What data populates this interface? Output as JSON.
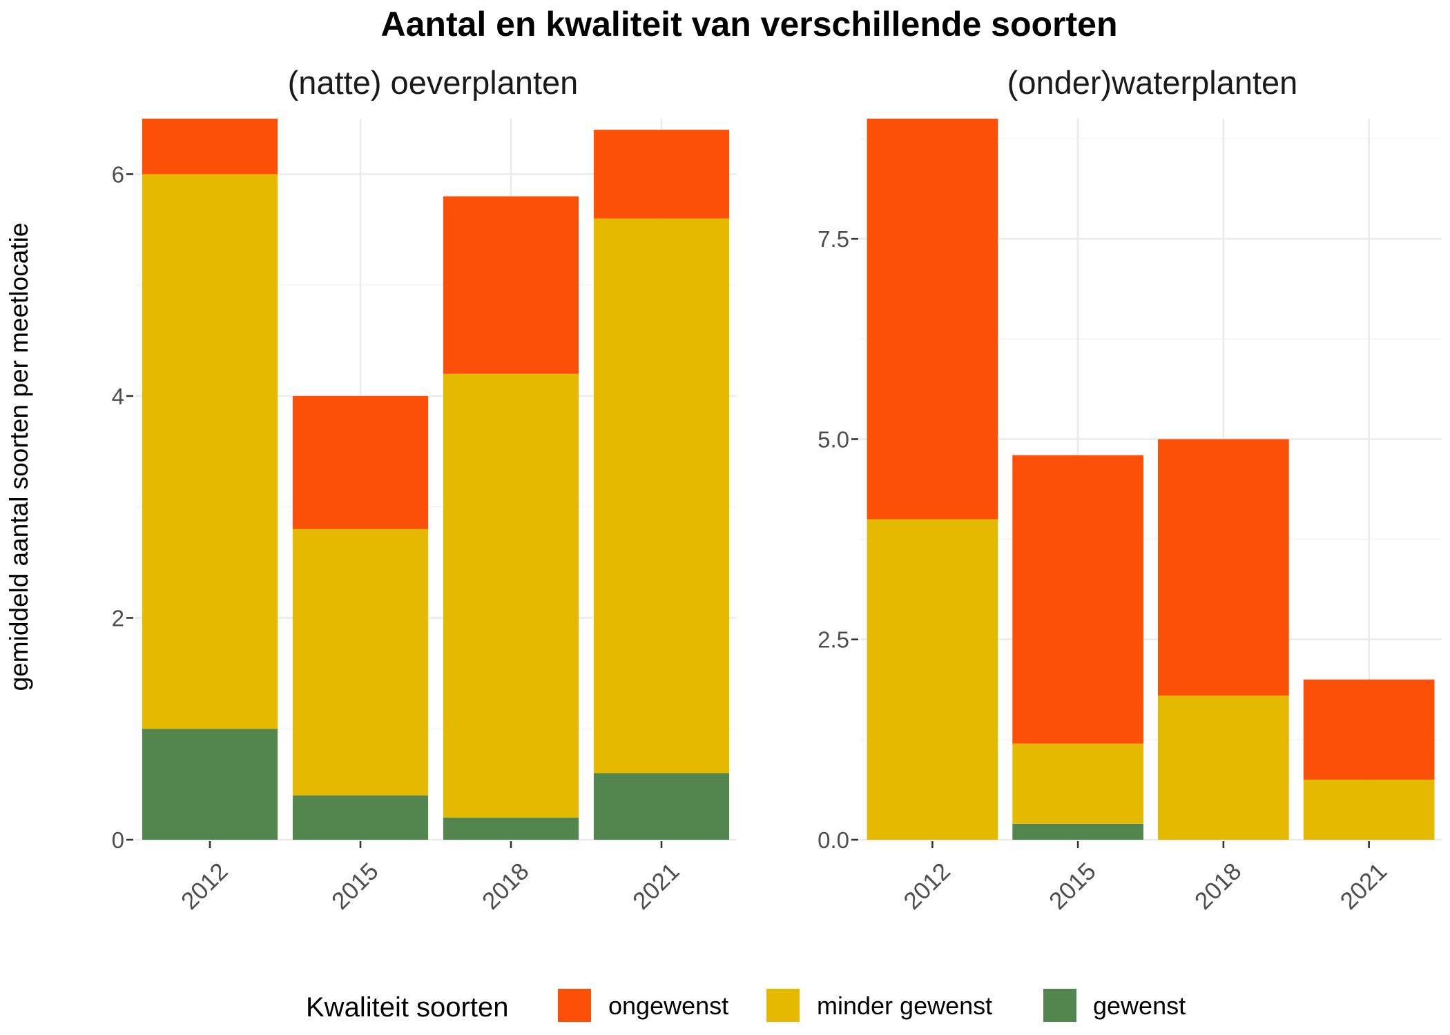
{
  "title": "Aantal en kwaliteit van verschillende soorten",
  "ylabel": "gemiddeld aantal soorten per meetlocatie",
  "legend": {
    "title": "Kwaliteit soorten",
    "items": [
      {
        "label": "ongewenst",
        "color": "#FC5008"
      },
      {
        "label": "minder gewenst",
        "color": "#E4B900"
      },
      {
        "label": "gewenst",
        "color": "#53864E"
      }
    ]
  },
  "chart_data": [
    {
      "type": "bar",
      "stacked": true,
      "title": "(natte) oeverplanten",
      "categories": [
        "2012",
        "2015",
        "2018",
        "2021"
      ],
      "ylim": [
        0,
        6.5
      ],
      "yticks": [
        0,
        2,
        4,
        6
      ],
      "ytick_labels": [
        "0",
        "2",
        "4",
        "6"
      ],
      "series": [
        {
          "name": "gewenst",
          "color": "#53864E",
          "values": [
            1.0,
            0.4,
            0.2,
            0.6
          ]
        },
        {
          "name": "minder gewenst",
          "color": "#E4B900",
          "values": [
            5.0,
            2.4,
            4.0,
            5.0
          ]
        },
        {
          "name": "ongewenst",
          "color": "#FC5008",
          "values": [
            0.5,
            1.2,
            1.6,
            0.8
          ]
        }
      ]
    },
    {
      "type": "bar",
      "stacked": true,
      "title": "(onder)waterplanten",
      "categories": [
        "2012",
        "2015",
        "2018",
        "2021"
      ],
      "ylim": [
        0,
        9
      ],
      "yticks": [
        0,
        2.5,
        5,
        7.5
      ],
      "ytick_labels": [
        "0.0",
        "2.5",
        "5.0",
        "7.5"
      ],
      "series": [
        {
          "name": "gewenst",
          "color": "#53864E",
          "values": [
            0,
            0.2,
            0,
            0
          ]
        },
        {
          "name": "minder gewenst",
          "color": "#E4B900",
          "values": [
            4.0,
            1.0,
            1.8,
            0.75
          ]
        },
        {
          "name": "ongewenst",
          "color": "#FC5008",
          "values": [
            5.0,
            3.6,
            3.2,
            1.25
          ]
        }
      ]
    }
  ]
}
